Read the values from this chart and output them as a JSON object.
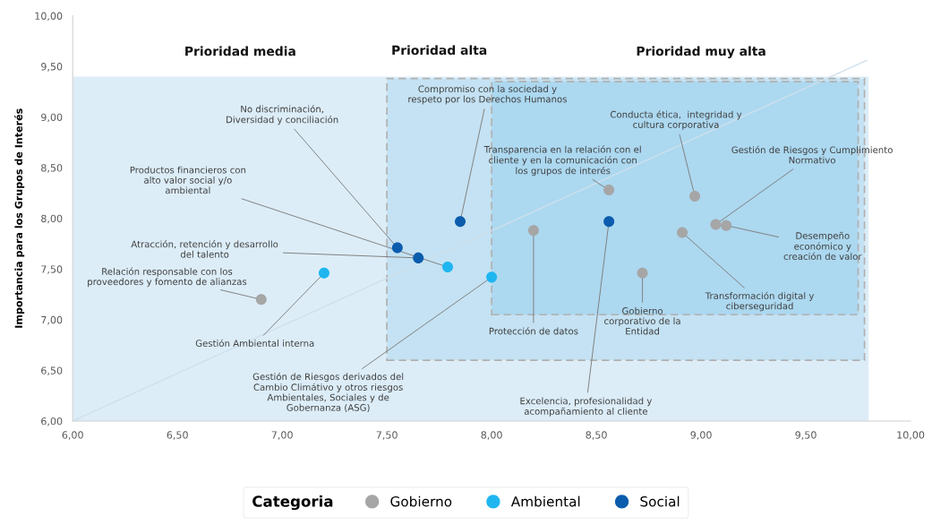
{
  "chart_data": {
    "type": "scatter",
    "ylabel": "Importancia para los Grupos de Interés",
    "legend_title": "Categoria",
    "legend": "bottom",
    "marker": "circle",
    "grid": false,
    "xlim": [
      6,
      10
    ],
    "ylim": [
      6,
      10
    ],
    "xticks": [
      {
        "value": 6,
        "label": "6,00"
      },
      {
        "value": 6.5,
        "label": "6,50"
      },
      {
        "value": 7,
        "label": "7,00"
      },
      {
        "value": 7.5,
        "label": "7,50"
      },
      {
        "value": 8,
        "label": "8,00"
      },
      {
        "value": 8.5,
        "label": "8,50"
      },
      {
        "value": 9,
        "label": "9,00"
      },
      {
        "value": 9.5,
        "label": "9,50"
      },
      {
        "value": 10,
        "label": "10,00"
      }
    ],
    "yticks": [
      {
        "value": 6,
        "label": "6,00"
      },
      {
        "value": 6.5,
        "label": "6,50"
      },
      {
        "value": 7,
        "label": "7,00"
      },
      {
        "value": 7.5,
        "label": "7,50"
      },
      {
        "value": 8,
        "label": "8,00"
      },
      {
        "value": 8.5,
        "label": "8,50"
      },
      {
        "value": 9,
        "label": "9,00"
      },
      {
        "value": 9.5,
        "label": "9,50"
      },
      {
        "value": 10,
        "label": "10,00"
      }
    ],
    "bands": [
      {
        "axis": "x",
        "from": 6,
        "to": 9.8,
        "label": "Prioridad media",
        "color": "#dcedf8"
      },
      {
        "axis": "x",
        "from": 7.5,
        "to": 9.78,
        "label": "Prioridad alta",
        "color": "#c4e2f3"
      },
      {
        "axis": "x",
        "from": 8,
        "to": 9.75,
        "label": "Prioridad muy alta",
        "color": "#acd8f0"
      }
    ],
    "series": [
      {
        "type": "line",
        "marker": "none",
        "color": "#cfe0ec",
        "x": [
          6,
          9.79
        ],
        "values": [
          6,
          9.56
        ]
      },
      {
        "name": "Gobierno",
        "color": "#a6a6a6",
        "x": [
          6.9,
          8.2,
          8.56,
          8.97,
          8.72,
          8.91,
          9.07,
          9.12
        ],
        "values": [
          7.2,
          7.88,
          8.28,
          8.22,
          7.46,
          7.86,
          7.94,
          7.93
        ]
      },
      {
        "name": "Ambiental",
        "color": "#1fb6f0",
        "x": [
          7.2,
          7.79,
          8.0
        ],
        "values": [
          7.46,
          7.52,
          7.42
        ]
      },
      {
        "name": "Social",
        "color": "#0b5cad",
        "x": [
          7.55,
          7.65,
          7.85,
          8.56
        ],
        "values": [
          7.71,
          7.61,
          7.97,
          7.97
        ]
      }
    ],
    "annotations": [
      {
        "text": "Relación responsable con los\nproveedores y fomento de alianzas",
        "x": 6.9,
        "y": 7.2
      },
      {
        "text": "Protección de datos",
        "x": 8.2,
        "y": 7.88
      },
      {
        "text": "Transparencia en la relación con el\ncliente y en la comunicación con\nlos grupos de interés",
        "x": 8.56,
        "y": 8.28
      },
      {
        "text": "Conducta ética,  integridad y\ncultura corporativa",
        "x": 8.97,
        "y": 8.22
      },
      {
        "text": "Gobierno\ncorporativo de la\nEntidad",
        "x": 8.72,
        "y": 7.46
      },
      {
        "text": "Transformación digital y\nciberseguridad",
        "x": 8.91,
        "y": 7.86
      },
      {
        "text": "Gestión de Riesgos y Cumplimiento\nNormativo",
        "x": 9.07,
        "y": 7.94
      },
      {
        "text": "Desempeño\neconómico y\ncreación de valor",
        "x": 9.12,
        "y": 7.93
      },
      {
        "text": "Gestión Ambiental interna",
        "x": 7.2,
        "y": 7.46
      },
      {
        "text": "Productos financieros con\nalto valor social y/o\nambiental",
        "x": 7.79,
        "y": 7.52
      },
      {
        "text": "Gestión de Riesgos derivados del\nCambio Climátivo y otros riesgos\nAmbientales, Sociales y de\nGobernanza (ASG)",
        "x": 8.0,
        "y": 7.42
      },
      {
        "text": "No discriminación,\nDiversidad y conciliación",
        "x": 7.55,
        "y": 7.71
      },
      {
        "text": "Atracción, retención y desarrollo\ndel talento",
        "x": 7.65,
        "y": 7.61
      },
      {
        "text": "Compromiso con la sociedad y\nrespeto por los Derechos Humanos",
        "x": 7.85,
        "y": 7.97
      },
      {
        "text": "Excelencia, profesionalidad y\nacompañamiento al cliente",
        "x": 8.56,
        "y": 7.97
      }
    ]
  }
}
